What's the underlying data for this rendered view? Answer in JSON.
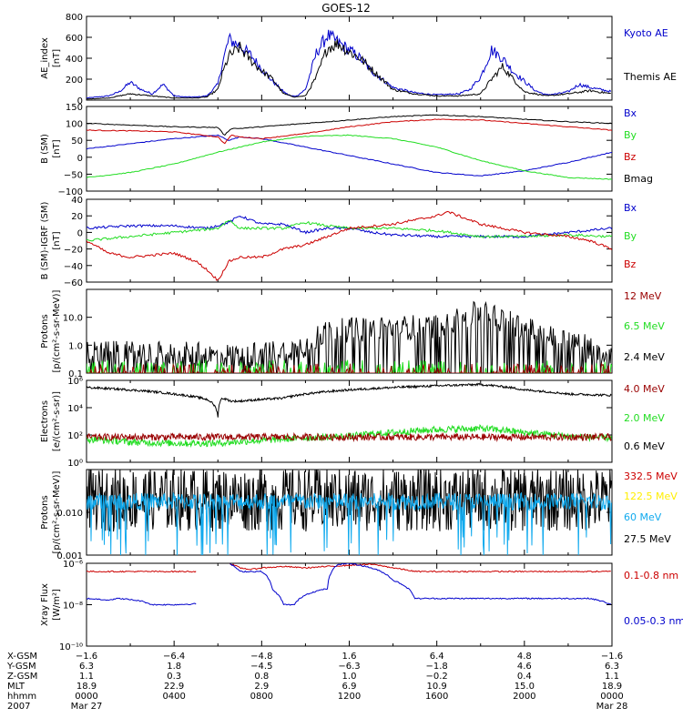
{
  "title": "GOES-12",
  "colors": {
    "black": "#000000",
    "blue": "#0000cc",
    "red": "#cc0000",
    "green": "#22dd22",
    "darkred": "#990000",
    "cyan": "#11aaee",
    "yellow": "#ffee00"
  },
  "chart_data": [
    {
      "id": "ae",
      "type": "line",
      "ylabel": [
        "AE_index",
        "[nT]"
      ],
      "scale": "linear",
      "ylim": [
        0,
        800
      ],
      "yticks": [
        "0",
        "200",
        "400",
        "600",
        "800"
      ],
      "legend": [
        {
          "name": "Kyoto AE",
          "color": "blue"
        },
        {
          "name": "Themis AE",
          "color": "black"
        }
      ],
      "series": [
        {
          "name": "Kyoto AE",
          "color": "blue",
          "x": [
            0,
            1,
            1.5,
            2,
            2.5,
            3,
            3.5,
            4,
            4.5,
            5,
            5.5,
            6,
            6.2,
            6.5,
            7,
            7.5,
            8,
            8.5,
            9,
            9.3,
            9.6,
            10,
            10.5,
            11,
            11.5,
            12,
            12.5,
            13,
            14,
            15,
            16,
            17,
            17.5,
            18,
            18.5,
            19,
            19.5,
            20,
            20.5,
            21,
            21.5,
            22,
            22.5,
            23,
            24
          ],
          "y": [
            20,
            40,
            80,
            170,
            100,
            60,
            150,
            40,
            30,
            30,
            40,
            150,
            350,
            580,
            520,
            430,
            300,
            180,
            80,
            40,
            40,
            100,
            450,
            620,
            550,
            480,
            400,
            280,
            120,
            70,
            50,
            60,
            100,
            220,
            480,
            400,
            270,
            180,
            90,
            50,
            60,
            80,
            150,
            120,
            80
          ]
        },
        {
          "name": "Themis AE",
          "color": "black",
          "x": [
            0,
            1,
            2,
            3,
            4,
            5,
            5.5,
            6,
            6.2,
            6.5,
            7,
            7.5,
            8,
            8.5,
            9,
            9.5,
            10,
            10.5,
            11,
            11.5,
            12,
            12.5,
            13,
            14,
            15,
            16,
            17,
            18,
            18.5,
            19,
            19.5,
            20,
            21,
            22,
            23,
            24
          ],
          "y": [
            10,
            20,
            60,
            40,
            20,
            20,
            30,
            100,
            250,
            420,
            500,
            380,
            280,
            200,
            60,
            30,
            40,
            220,
            500,
            540,
            460,
            400,
            300,
            100,
            60,
            40,
            40,
            60,
            200,
            320,
            200,
            80,
            40,
            60,
            90,
            60
          ]
        }
      ]
    },
    {
      "id": "bfield",
      "type": "line",
      "ylabel": [
        "B (SM)",
        "[nT]"
      ],
      "scale": "linear",
      "ylim": [
        -100,
        150
      ],
      "yticks": [
        "−100",
        "−50",
        "0",
        "50",
        "100",
        "150"
      ],
      "legend": [
        {
          "name": "Bx",
          "color": "blue"
        },
        {
          "name": "By",
          "color": "green"
        },
        {
          "name": "Bz",
          "color": "red"
        },
        {
          "name": "Bmag",
          "color": "black"
        }
      ],
      "series": [
        {
          "name": "Bx",
          "color": "blue",
          "x": [
            0,
            2,
            4,
            6,
            6.5,
            7,
            8,
            10,
            12,
            14,
            16,
            18,
            20,
            22,
            24
          ],
          "y": [
            25,
            40,
            55,
            65,
            50,
            60,
            55,
            30,
            5,
            -20,
            -45,
            -55,
            -40,
            -15,
            15
          ]
        },
        {
          "name": "By",
          "color": "green",
          "x": [
            0,
            2,
            4,
            6,
            8,
            10,
            12,
            14,
            16,
            18,
            20,
            22,
            24
          ],
          "y": [
            -60,
            -45,
            -20,
            15,
            45,
            62,
            65,
            55,
            30,
            -10,
            -40,
            -60,
            -65
          ]
        },
        {
          "name": "Bz",
          "color": "red",
          "x": [
            0,
            2,
            4,
            6,
            6.3,
            6.6,
            7,
            8,
            10,
            12,
            14,
            16,
            18,
            20,
            22,
            24
          ],
          "y": [
            80,
            78,
            75,
            60,
            40,
            65,
            60,
            55,
            70,
            90,
            105,
            112,
            110,
            100,
            90,
            80
          ]
        },
        {
          "name": "Bmag",
          "color": "black",
          "x": [
            0,
            2,
            4,
            6,
            6.3,
            6.6,
            7,
            8,
            10,
            12,
            14,
            16,
            18,
            20,
            22,
            24
          ],
          "y": [
            100,
            95,
            90,
            88,
            65,
            85,
            85,
            90,
            100,
            110,
            120,
            125,
            120,
            112,
            105,
            100
          ]
        }
      ]
    },
    {
      "id": "bdiff",
      "type": "line",
      "ylabel": [
        "B (SM)-IGRF (SM)",
        "[nT]"
      ],
      "scale": "linear",
      "ylim": [
        -60,
        40
      ],
      "yticks": [
        "−60",
        "−40",
        "−20",
        "0",
        "20",
        "40"
      ],
      "legend": [
        {
          "name": "Bx",
          "color": "blue"
        },
        {
          "name": "By",
          "color": "green"
        },
        {
          "name": "Bz",
          "color": "red"
        }
      ],
      "series": [
        {
          "name": "Bx",
          "color": "blue",
          "x": [
            0,
            2,
            4,
            5.5,
            6.5,
            7,
            8,
            9,
            10,
            11,
            12,
            13,
            14,
            16,
            18,
            20,
            22,
            24
          ],
          "y": [
            5,
            8,
            8,
            5,
            12,
            20,
            10,
            10,
            0,
            5,
            5,
            0,
            -3,
            -5,
            -5,
            -5,
            0,
            5
          ]
        },
        {
          "name": "By",
          "color": "green",
          "x": [
            0,
            2,
            4,
            6,
            6.5,
            7,
            8,
            9,
            10,
            11,
            12,
            14,
            16,
            18,
            20,
            22,
            24
          ],
          "y": [
            -10,
            -5,
            0,
            5,
            15,
            5,
            5,
            5,
            12,
            8,
            5,
            5,
            2,
            -5,
            -5,
            -3,
            -5
          ]
        },
        {
          "name": "Bz",
          "color": "red",
          "x": [
            0,
            1,
            2,
            4,
            5,
            5.5,
            6,
            6.5,
            7,
            8,
            9,
            10,
            12,
            14,
            16,
            16.5,
            17,
            18,
            20,
            22,
            23,
            24
          ],
          "y": [
            -10,
            -25,
            -30,
            -25,
            -35,
            -45,
            -58,
            -35,
            -30,
            -30,
            -20,
            -15,
            5,
            10,
            20,
            25,
            20,
            10,
            0,
            -5,
            -10,
            -20
          ]
        }
      ]
    },
    {
      "id": "protons_low",
      "type": "line",
      "ylabel": [
        "Protons",
        "[p/(cm²-s-sr-MeV)]"
      ],
      "scale": "log",
      "ylim": [
        0.1,
        100
      ],
      "yticks": [
        "0.1",
        "1.0",
        "10.0"
      ],
      "legend": [
        {
          "name": "12 MeV",
          "color": "darkred"
        },
        {
          "name": "6.5 MeV",
          "color": "green"
        },
        {
          "name": "2.4 MeV",
          "color": "black"
        }
      ],
      "series": [
        {
          "name": "2.4 MeV",
          "color": "black",
          "x": [
            0,
            2,
            4,
            6,
            8,
            9,
            10,
            11,
            12,
            14,
            16,
            17,
            18,
            19,
            20,
            21,
            22,
            23,
            24
          ],
          "y": [
            0.5,
            0.5,
            0.5,
            0.4,
            0.5,
            0.6,
            1.0,
            3.0,
            3.5,
            4,
            5,
            8,
            15,
            8,
            4,
            2,
            1.5,
            0.8,
            0.5
          ]
        },
        {
          "name": "6.5 MeV",
          "color": "green",
          "x": [
            0,
            24
          ],
          "y": [
            0.15,
            0.15
          ]
        },
        {
          "name": "12 MeV",
          "color": "darkred",
          "x": [
            0,
            24
          ],
          "y": [
            0.11,
            0.11
          ]
        }
      ]
    },
    {
      "id": "electrons",
      "type": "line",
      "ylabel": [
        "Electrons",
        "[e/(cm²-s-sr)]"
      ],
      "scale": "log",
      "ylim": [
        1,
        1000000
      ],
      "yticks": [
        "10⁰",
        "10²",
        "10⁴",
        "10⁶"
      ],
      "legend": [
        {
          "name": "4.0 MeV",
          "color": "darkred"
        },
        {
          "name": "2.0 MeV",
          "color": "green"
        },
        {
          "name": "0.6 MeV",
          "color": "black"
        }
      ],
      "series": [
        {
          "name": "0.6 MeV",
          "color": "black",
          "x": [
            0,
            2,
            4,
            5,
            5.5,
            6,
            6.2,
            6.6,
            7,
            8,
            9,
            10,
            12,
            14,
            16,
            18,
            20,
            22,
            24
          ],
          "y": [
            300000,
            200000,
            100000,
            60000,
            40000,
            2000,
            50000,
            30000,
            30000,
            40000,
            50000,
            100000,
            200000,
            300000,
            400000,
            500000,
            200000,
            100000,
            80000
          ]
        },
        {
          "name": "2.0 MeV",
          "color": "green",
          "x": [
            0,
            2,
            4,
            6,
            8,
            10,
            12,
            14,
            16,
            18,
            20,
            22,
            24
          ],
          "y": [
            50,
            30,
            25,
            25,
            40,
            60,
            80,
            150,
            250,
            300,
            150,
            80,
            60
          ]
        },
        {
          "name": "4.0 MeV",
          "color": "darkred",
          "x": [
            0,
            24
          ],
          "y": [
            70,
            70
          ]
        }
      ]
    },
    {
      "id": "protons_high",
      "type": "line",
      "ylabel": [
        "Protons",
        "[p/(cm²-s-sr-MeV)]"
      ],
      "scale": "log",
      "ylim": [
        0.001,
        0.1
      ],
      "yticks": [
        "0.001",
        "0.010"
      ],
      "legend": [
        {
          "name": "332.5 MeV",
          "color": "red"
        },
        {
          "name": "122.5 MeV",
          "color": "yellow"
        },
        {
          "name": "60 MeV",
          "color": "cyan"
        },
        {
          "name": "27.5 MeV",
          "color": "black"
        }
      ],
      "series": [
        {
          "name": "27.5 MeV",
          "color": "black",
          "x": [
            0,
            24
          ],
          "y": [
            0.02,
            0.02
          ]
        },
        {
          "name": "60 MeV",
          "color": "cyan",
          "x": [
            0,
            24
          ],
          "y": [
            0.018,
            0.018
          ]
        }
      ]
    },
    {
      "id": "xray",
      "type": "line",
      "ylabel": [
        "Xray Flux",
        "[W/m²]"
      ],
      "scale": "log",
      "ylim": [
        1e-10,
        1e-06
      ],
      "yticks": [
        "10⁻¹⁰",
        "10⁻⁸",
        "10⁻⁶"
      ],
      "legend": [
        {
          "name": "0.1-0.8 nm",
          "color": "red"
        },
        {
          "name": "0.05-0.3 nm",
          "color": "blue"
        }
      ],
      "series": [
        {
          "name": "0.1-0.8 nm",
          "color": "red",
          "x": [
            0,
            5,
            5.05,
            6.5,
            7,
            7.5,
            8,
            9,
            10,
            11,
            12,
            13,
            14,
            15,
            16,
            17,
            18,
            19,
            20,
            21,
            22,
            23,
            24
          ],
          "y": [
            4e-07,
            4e-07,
            null,
            1e-06,
            6e-07,
            5e-07,
            6e-07,
            7e-07,
            6e-07,
            7e-07,
            8e-07,
            9e-07,
            6e-07,
            4e-07,
            4e-07,
            4e-07,
            4e-07,
            4e-07,
            4e-07,
            4e-07,
            4e-07,
            4e-07,
            4e-07
          ]
        },
        {
          "name": "0.05-0.3 nm",
          "color": "blue",
          "x": [
            0,
            1,
            1.5,
            2.5,
            3,
            4,
            5,
            5.05,
            6.5,
            7,
            8,
            8.5,
            9,
            9.5,
            10,
            11,
            11.5,
            12,
            13,
            14,
            15,
            16,
            18,
            20,
            22,
            23,
            24
          ],
          "y": [
            2e-08,
            1.7e-08,
            2e-08,
            1.5e-08,
            1e-08,
            1e-08,
            1.1e-08,
            null,
            1e-06,
            4e-07,
            4e-07,
            5e-08,
            1e-08,
            1e-08,
            3e-08,
            6e-08,
            9e-07,
            1e-06,
            6e-07,
            1.5e-07,
            2e-08,
            2e-08,
            2e-08,
            2e-08,
            2e-08,
            2e-08,
            1e-08
          ]
        }
      ]
    }
  ],
  "xaxis": {
    "rows": [
      {
        "label": "X-GSM",
        "values": [
          "−1.6",
          "−6.4",
          "−4.8",
          "1.6",
          "6.4",
          "4.8",
          "−1.6"
        ]
      },
      {
        "label": "Y-GSM",
        "values": [
          "6.3",
          "1.8",
          "−4.5",
          "−6.3",
          "−1.8",
          "4.6",
          "6.3"
        ]
      },
      {
        "label": "Z-GSM",
        "values": [
          "1.1",
          "0.3",
          "0.8",
          "1.0",
          "−0.2",
          "0.4",
          "1.1"
        ]
      },
      {
        "label": "MLT",
        "values": [
          "18.9",
          "22.9",
          "2.9",
          "6.9",
          "10.9",
          "15.0",
          "18.9"
        ]
      },
      {
        "label": "hhmm",
        "values": [
          "0000",
          "0400",
          "0800",
          "1200",
          "1600",
          "2000",
          "0000"
        ]
      },
      {
        "label": "2007",
        "values": [
          "Mar 27",
          "",
          "",
          "",
          "",
          "",
          "Mar 28"
        ]
      }
    ],
    "xlim": [
      0,
      24
    ]
  }
}
